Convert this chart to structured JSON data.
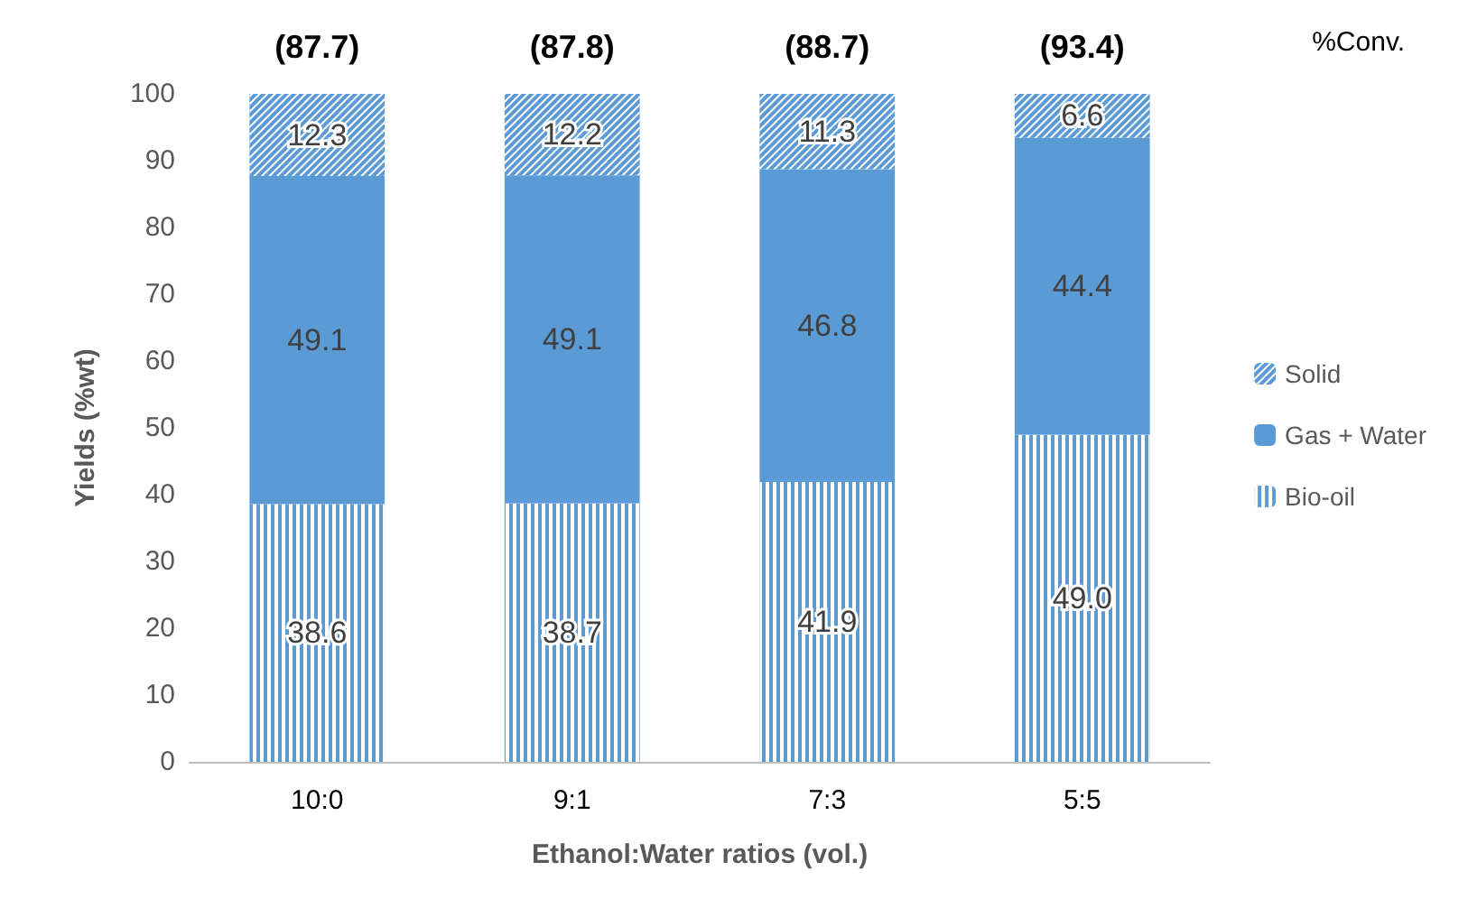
{
  "chart_data": {
    "type": "bar",
    "stacked": true,
    "xlabel": "Ethanol:Water ratios (vol.)",
    "ylabel": "Yields (%wt)",
    "categories": [
      "10:0",
      "9:1",
      "7:3",
      "5:5"
    ],
    "series": [
      {
        "name": "Bio-oil",
        "color": "#5b9bd5",
        "values": [
          38.6,
          38.7,
          41.9,
          49.0
        ],
        "value_labels": [
          "38.6",
          "38.7",
          "41.9",
          "49.0"
        ]
      },
      {
        "name": "Gas + Water",
        "color": "#5b9bd5",
        "values": [
          49.1,
          49.1,
          46.8,
          44.4
        ],
        "value_labels": [
          "49.1",
          "49.1",
          "46.8",
          "44.4"
        ]
      },
      {
        "name": "Solid",
        "color": "#5b9bd5",
        "values": [
          12.3,
          12.2,
          11.3,
          6.6
        ],
        "value_labels": [
          "12.3",
          "12.2",
          "11.3",
          "6.6"
        ]
      }
    ],
    "ylim": [
      0,
      100
    ],
    "yticks": [
      0,
      10,
      20,
      30,
      40,
      50,
      60,
      70,
      80,
      90,
      100
    ],
    "grid": false,
    "legend": "right",
    "annotations": [
      "(87.7)",
      "(87.8)",
      "(88.7)",
      "(93.4)",
      "%Conv."
    ]
  }
}
